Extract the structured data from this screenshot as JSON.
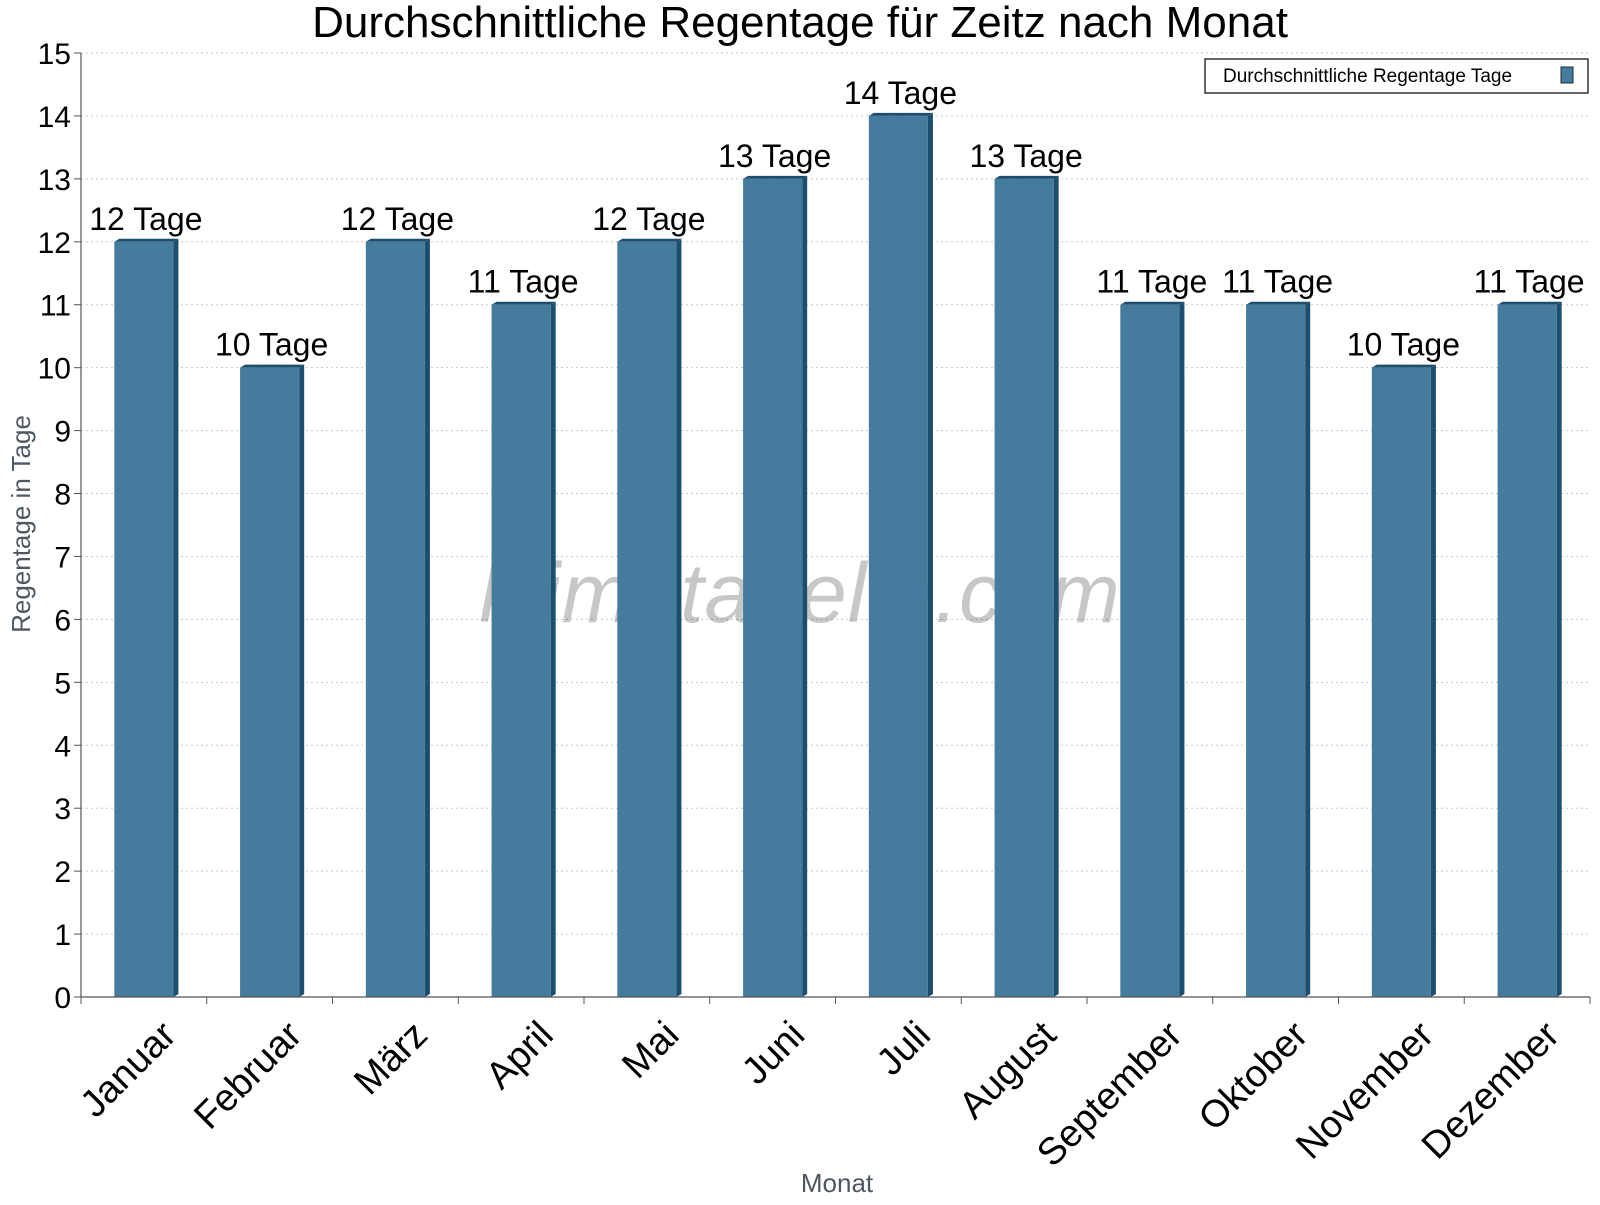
{
  "chart_data": {
    "type": "bar",
    "title": "Durchschnittliche Regentage für Zeitz nach Monat",
    "xlabel": "Monat",
    "ylabel": "Regentage in Tage",
    "ylim": [
      0,
      15
    ],
    "y_ticks": [
      "0",
      "1",
      "2",
      "3",
      "4",
      "5",
      "6",
      "7",
      "8",
      "9",
      "10",
      "11",
      "12",
      "13",
      "14",
      "15"
    ],
    "grid": true,
    "legend_position": "top-right",
    "categories": [
      "Januar",
      "Februar",
      "März",
      "April",
      "Mai",
      "Juni",
      "Juli",
      "August",
      "September",
      "Oktober",
      "November",
      "Dezember"
    ],
    "series": [
      {
        "name": "Durchschnittliche Regentage Tage",
        "values": [
          12,
          10,
          12,
          11,
          12,
          13,
          14,
          13,
          11,
          11,
          10,
          11
        ],
        "data_labels": [
          "12 Tage",
          "10 Tage",
          "12 Tage",
          "11 Tage",
          "12 Tage",
          "13 Tage",
          "14 Tage",
          "13 Tage",
          "11 Tage",
          "11 Tage",
          "10 Tage",
          "11 Tage"
        ],
        "color": "#457b9d",
        "shade_color": "#1d4e6e"
      }
    ],
    "watermark": "klimatabelle.com"
  }
}
